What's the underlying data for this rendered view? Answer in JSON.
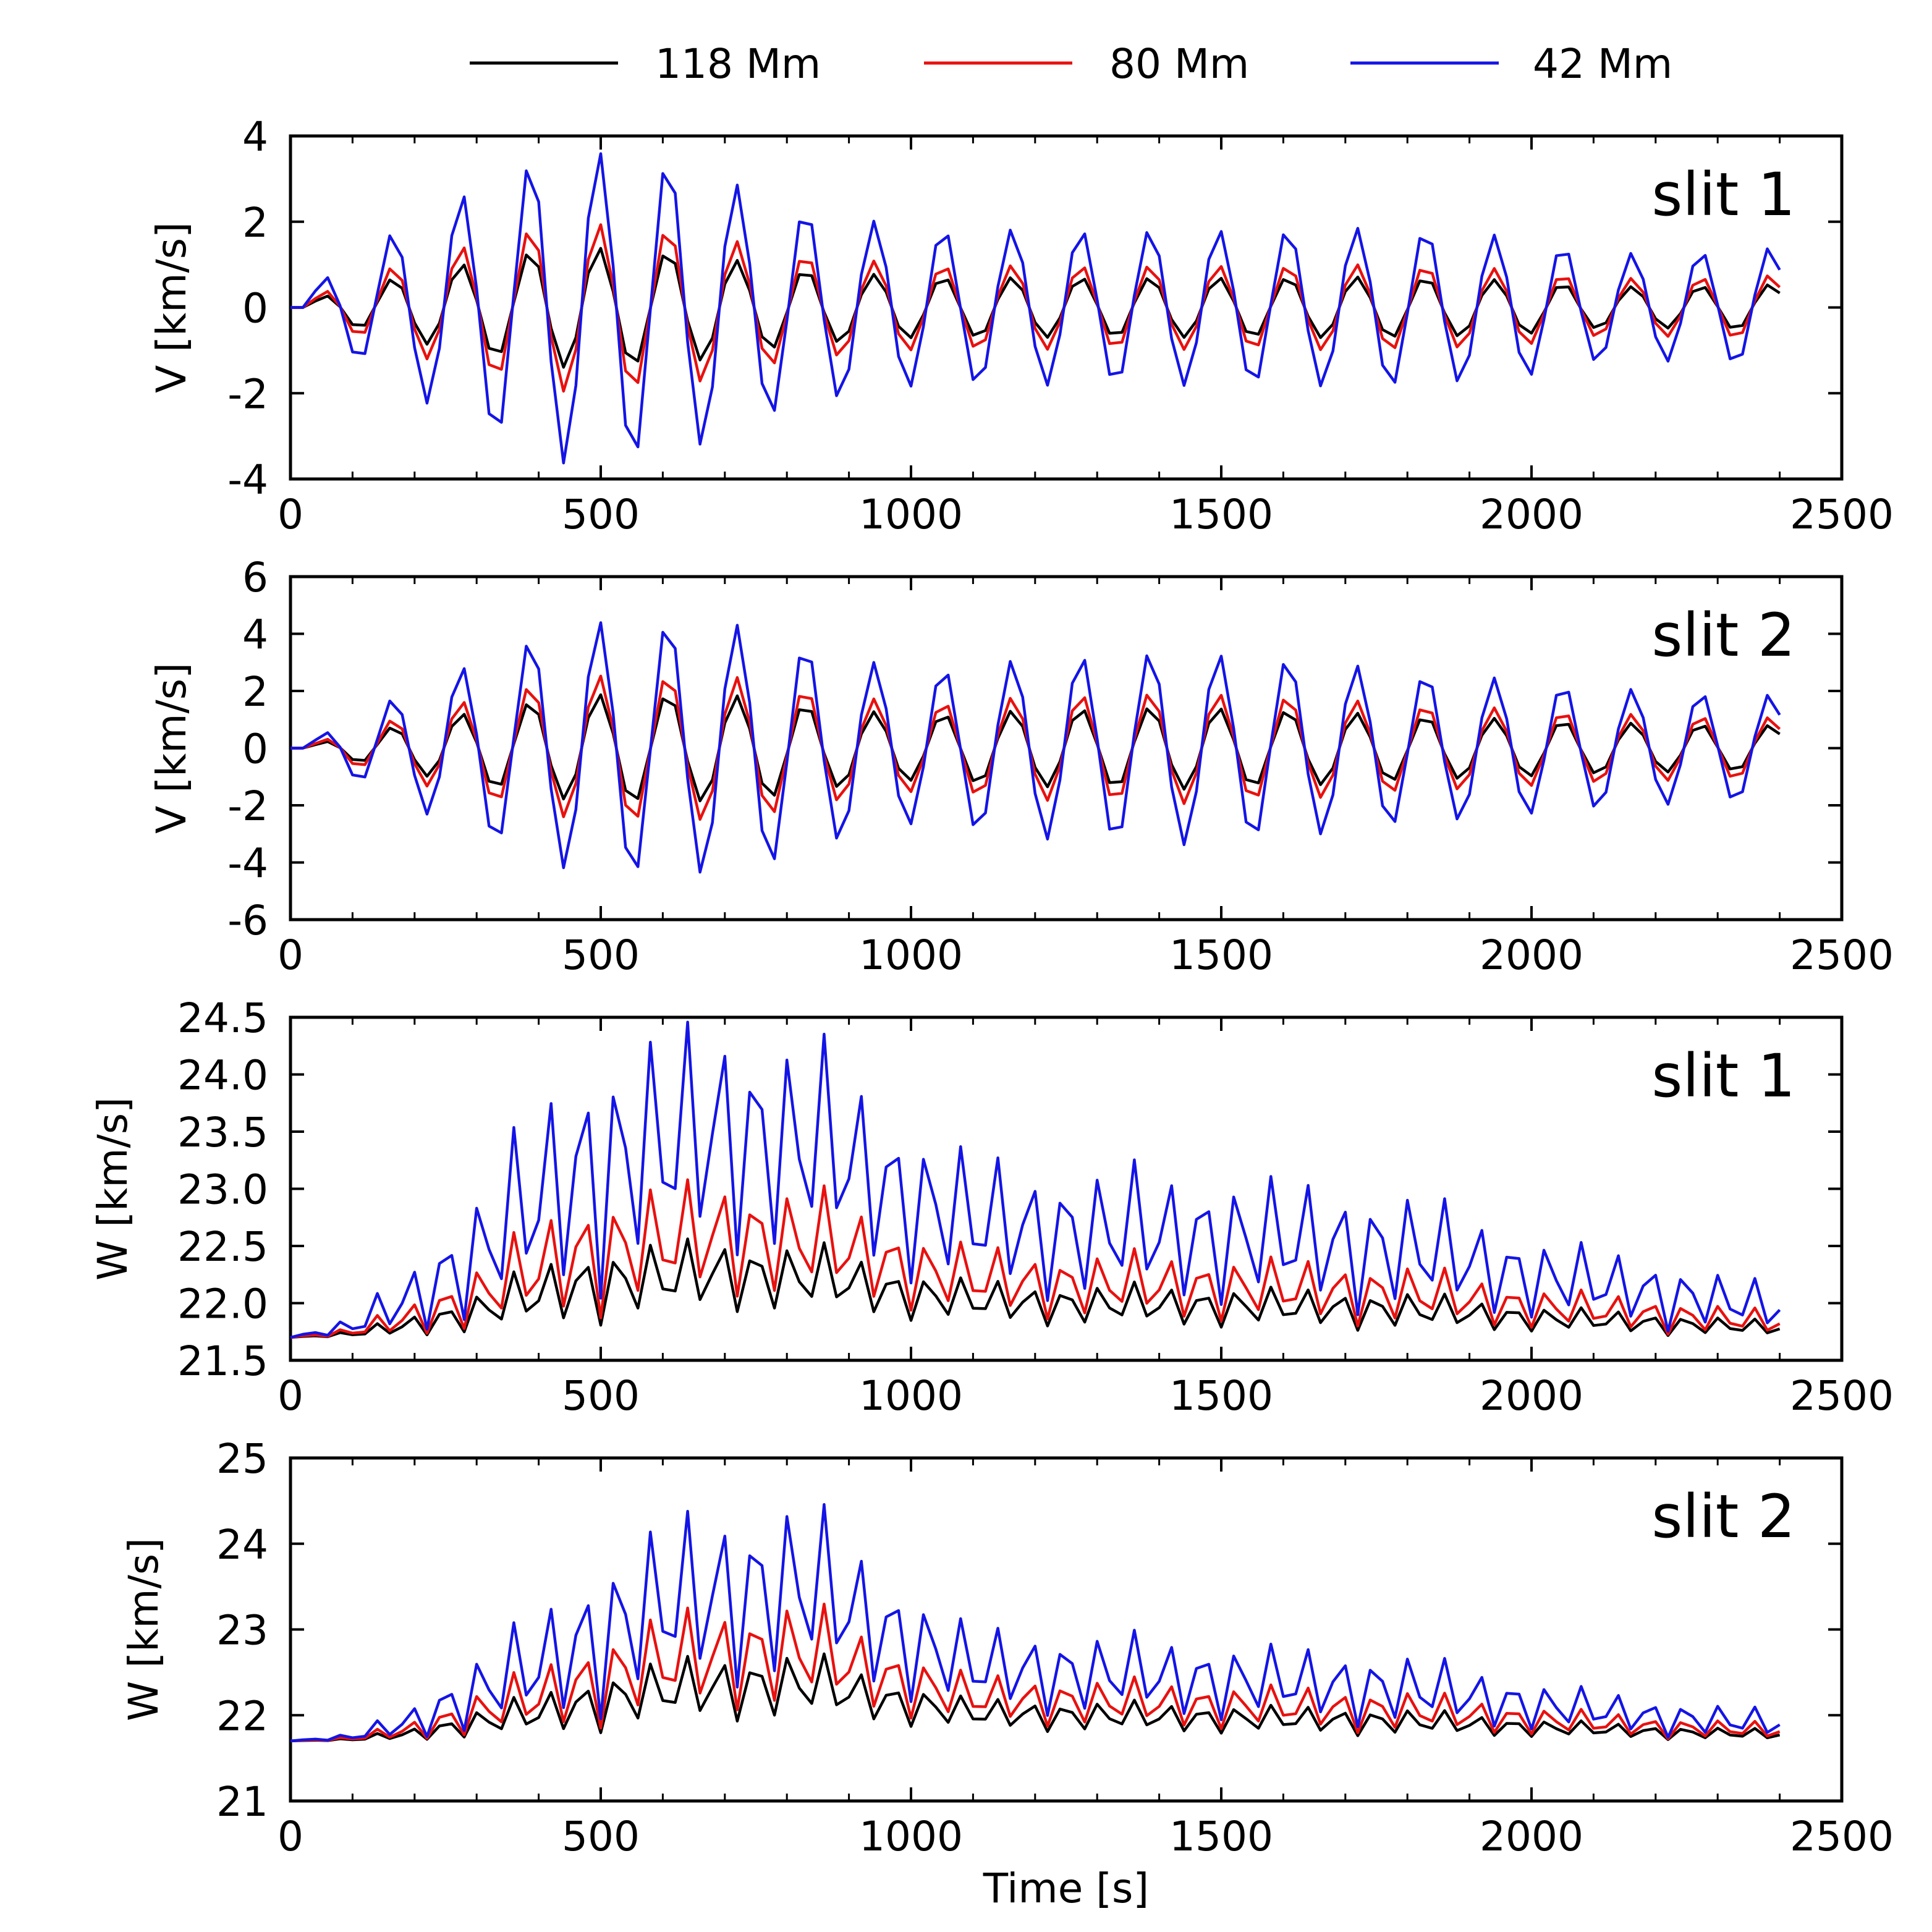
{
  "chart_data": [
    {
      "type": "line",
      "panel": "slit 1",
      "ylabel": "V [km/s]",
      "xlabel": "",
      "xlim": [
        0,
        2500
      ],
      "ylim": [
        -4,
        4
      ],
      "xticks": [
        "0",
        "500",
        "1000",
        "1500",
        "2000",
        "2500"
      ],
      "yticks": [
        "-4",
        "-2",
        "0",
        "2",
        "4"
      ],
      "model": {
        "kind": "velocity",
        "period": 111,
        "phase": 28,
        "t0": 25,
        "tend": 2410,
        "envelope": [
          [
            0,
            0.0
          ],
          [
            50,
            0.25
          ],
          [
            100,
            0.45
          ],
          [
            200,
            0.8
          ],
          [
            320,
            1.15
          ],
          [
            420,
            1.4
          ],
          [
            530,
            1.4
          ],
          [
            640,
            1.3
          ],
          [
            760,
            1.0
          ],
          [
            860,
            0.85
          ],
          [
            1000,
            0.72
          ],
          [
            1200,
            0.7
          ],
          [
            1500,
            0.7
          ],
          [
            1800,
            0.72
          ],
          [
            2000,
            0.62
          ],
          [
            2100,
            0.5
          ],
          [
            2200,
            0.48
          ],
          [
            2410,
            0.55
          ]
        ],
        "scales": [
          1.0,
          1.4,
          2.6
        ]
      },
      "series": [
        {
          "name": "118 Mm",
          "color": "#000000"
        },
        {
          "name": "80 Mm",
          "color": "#e8110f"
        },
        {
          "name": "42 Mm",
          "color": "#1414e6"
        }
      ]
    },
    {
      "type": "line",
      "panel": "slit 2",
      "ylabel": "V [km/s]",
      "xlabel": "",
      "xlim": [
        0,
        2500
      ],
      "ylim": [
        -6,
        6
      ],
      "xticks": [
        "0",
        "500",
        "1000",
        "1500",
        "2000",
        "2500"
      ],
      "yticks": [
        "-6",
        "-4",
        "-2",
        "0",
        "2",
        "4",
        "6"
      ],
      "model": {
        "kind": "velocity",
        "period": 111,
        "phase": 28,
        "t0": 25,
        "tend": 2410,
        "envelope": [
          [
            0,
            0.0
          ],
          [
            50,
            0.2
          ],
          [
            100,
            0.45
          ],
          [
            200,
            0.9
          ],
          [
            320,
            1.4
          ],
          [
            420,
            1.75
          ],
          [
            530,
            1.95
          ],
          [
            640,
            1.9
          ],
          [
            760,
            1.8
          ],
          [
            860,
            1.45
          ],
          [
            1000,
            1.15
          ],
          [
            1200,
            1.35
          ],
          [
            1420,
            1.45
          ],
          [
            1600,
            1.35
          ],
          [
            1800,
            1.15
          ],
          [
            2000,
            1.0
          ],
          [
            2200,
            0.85
          ],
          [
            2410,
            0.8
          ]
        ],
        "scales": [
          1.0,
          1.35,
          2.35
        ]
      },
      "series": [
        {
          "name": "118 Mm",
          "color": "#000000"
        },
        {
          "name": "80 Mm",
          "color": "#e8110f"
        },
        {
          "name": "42 Mm",
          "color": "#1414e6"
        }
      ]
    },
    {
      "type": "line",
      "panel": "slit 1",
      "ylabel": "W [km/s]",
      "xlabel": "",
      "xlim": [
        0,
        2500
      ],
      "ylim": [
        21.5,
        24.5
      ],
      "xticks": [
        "0",
        "500",
        "1000",
        "1500",
        "2000",
        "2500"
      ],
      "yticks": [
        "21.5",
        "22.0",
        "22.5",
        "23.0",
        "23.5",
        "24.0",
        "24.5"
      ],
      "model": {
        "kind": "width",
        "base": 21.7,
        "period": 55.5,
        "t0": 0,
        "tend": 2410,
        "envelope": [
          [
            0,
            0.0
          ],
          [
            100,
            0.08
          ],
          [
            200,
            0.3
          ],
          [
            300,
            0.55
          ],
          [
            400,
            0.85
          ],
          [
            480,
            1.0
          ],
          [
            600,
            1.0
          ],
          [
            700,
            1.0
          ],
          [
            850,
            0.9
          ],
          [
            1000,
            0.65
          ],
          [
            1200,
            0.55
          ],
          [
            1500,
            0.55
          ],
          [
            1800,
            0.5
          ],
          [
            2000,
            0.35
          ],
          [
            2200,
            0.28
          ],
          [
            2410,
            0.2
          ]
        ],
        "troughs": [
          [
            0,
            0.0
          ],
          [
            200,
            0.0
          ],
          [
            300,
            0.05
          ],
          [
            400,
            0.15
          ],
          [
            500,
            0.25
          ],
          [
            700,
            0.5
          ],
          [
            900,
            0.45
          ],
          [
            1100,
            0.25
          ],
          [
            1500,
            0.18
          ],
          [
            1900,
            0.12
          ],
          [
            2200,
            0.05
          ],
          [
            2410,
            0.0
          ]
        ],
        "scales": [
          0.75,
          1.2,
          2.4
        ]
      },
      "series": [
        {
          "name": "118 Mm",
          "color": "#000000"
        },
        {
          "name": "80 Mm",
          "color": "#e8110f"
        },
        {
          "name": "42 Mm",
          "color": "#1414e6"
        }
      ]
    },
    {
      "type": "line",
      "panel": "slit 2",
      "ylabel": "W [km/s]",
      "xlabel": "Time [s]",
      "xlim": [
        0,
        2500
      ],
      "ylim": [
        21,
        25
      ],
      "xticks": [
        "0",
        "500",
        "1000",
        "1500",
        "2000",
        "2500"
      ],
      "yticks": [
        "21",
        "22",
        "23",
        "24",
        "25"
      ],
      "model": {
        "kind": "width",
        "base": 21.7,
        "period": 55.5,
        "t0": 0,
        "tend": 2410,
        "envelope": [
          [
            0,
            0.0
          ],
          [
            100,
            0.05
          ],
          [
            200,
            0.25
          ],
          [
            300,
            0.55
          ],
          [
            400,
            0.8
          ],
          [
            500,
            1.1
          ],
          [
            600,
            1.25
          ],
          [
            700,
            1.3
          ],
          [
            820,
            1.3
          ],
          [
            950,
            0.9
          ],
          [
            1100,
            0.6
          ],
          [
            1500,
            0.55
          ],
          [
            1800,
            0.5
          ],
          [
            2000,
            0.35
          ],
          [
            2200,
            0.25
          ],
          [
            2410,
            0.2
          ]
        ],
        "troughs": [
          [
            0,
            0.0
          ],
          [
            200,
            0.0
          ],
          [
            300,
            0.05
          ],
          [
            450,
            0.15
          ],
          [
            600,
            0.4
          ],
          [
            800,
            0.6
          ],
          [
            900,
            0.55
          ],
          [
            1100,
            0.3
          ],
          [
            1500,
            0.2
          ],
          [
            1900,
            0.12
          ],
          [
            2200,
            0.05
          ],
          [
            2410,
            0.0
          ]
        ],
        "scales": [
          0.7,
          1.1,
          1.9
        ]
      },
      "series": [
        {
          "name": "118 Mm",
          "color": "#000000"
        },
        {
          "name": "80 Mm",
          "color": "#e8110f"
        },
        {
          "name": "42 Mm",
          "color": "#1414e6"
        }
      ]
    }
  ],
  "legend": {
    "items": [
      {
        "name": "118 Mm",
        "color": "#000000"
      },
      {
        "name": "80 Mm",
        "color": "#e8110f"
      },
      {
        "name": "42 Mm",
        "color": "#1414e6"
      }
    ]
  }
}
